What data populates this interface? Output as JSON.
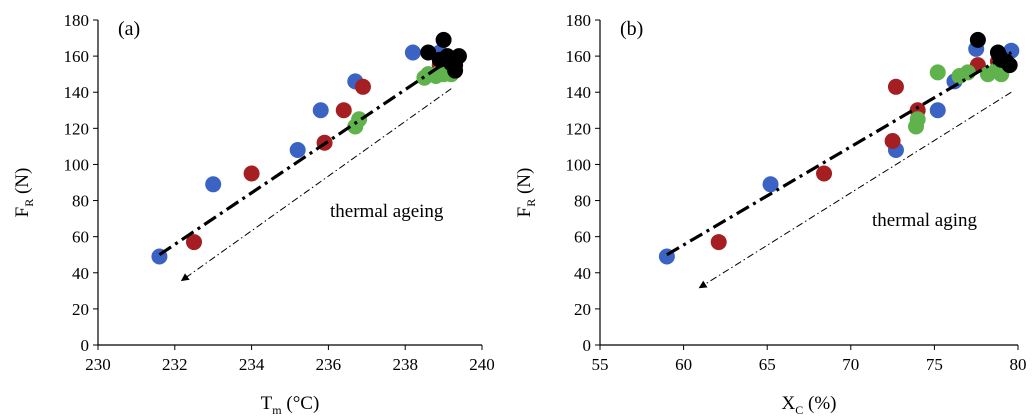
{
  "colors": {
    "blue": "#3a63c4",
    "red": "#a41e22",
    "green": "#5fb24c",
    "black": "#000000"
  },
  "chart_data": [
    {
      "type": "scatter",
      "panel_label": "(a)",
      "annotation": "thermal ageing",
      "xlabel": {
        "main": "T",
        "sub": "m",
        "unit": " (°C)"
      },
      "ylabel": {
        "main": "F",
        "sub": "R",
        "unit": " (N)"
      },
      "xlim": [
        230,
        240
      ],
      "ylim": [
        0,
        180
      ],
      "xticks": [
        230,
        232,
        234,
        236,
        238,
        240
      ],
      "yticks": [
        0,
        20,
        40,
        60,
        80,
        100,
        120,
        140,
        160,
        180
      ],
      "grid": false,
      "series": [
        {
          "color_key": "blue",
          "points": [
            [
              231.6,
              49
            ],
            [
              233.0,
              89
            ],
            [
              235.2,
              108
            ],
            [
              235.8,
              130
            ],
            [
              236.7,
              146
            ],
            [
              238.2,
              162
            ],
            [
              238.9,
              162
            ]
          ]
        },
        {
          "color_key": "red",
          "points": [
            [
              232.5,
              57
            ],
            [
              234.0,
              95
            ],
            [
              235.9,
              112
            ],
            [
              236.4,
              130
            ],
            [
              236.9,
              143
            ],
            [
              238.9,
              155
            ],
            [
              239.2,
              157
            ]
          ]
        },
        {
          "color_key": "green",
          "points": [
            [
              236.7,
              121
            ],
            [
              236.8,
              125
            ],
            [
              238.5,
              148
            ],
            [
              238.6,
              150
            ],
            [
              238.8,
              149
            ],
            [
              238.9,
              151
            ],
            [
              239.0,
              150
            ],
            [
              239.1,
              152
            ],
            [
              239.2,
              150
            ]
          ]
        },
        {
          "color_key": "black",
          "points": [
            [
              238.6,
              162
            ],
            [
              239.0,
              169
            ],
            [
              239.1,
              160
            ],
            [
              239.2,
              156
            ],
            [
              239.3,
              152
            ],
            [
              239.4,
              160
            ],
            [
              239.3,
              155
            ],
            [
              238.9,
              158
            ]
          ]
        }
      ],
      "trend_line": {
        "style": "dash-dot",
        "from": [
          231.6,
          50
        ],
        "to": [
          239.3,
          160
        ]
      },
      "arrow_line": {
        "style": "dash-dot-thin",
        "from": [
          239.2,
          142
        ],
        "to": [
          232.2,
          36
        ]
      }
    },
    {
      "type": "scatter",
      "panel_label": "(b)",
      "annotation": "thermal aging",
      "xlabel": {
        "main": "X",
        "sub": "C",
        "unit": " (%)"
      },
      "ylabel": {
        "main": "F",
        "sub": "R",
        "unit": " (N)"
      },
      "xlim": [
        55,
        80
      ],
      "ylim": [
        0,
        180
      ],
      "xticks": [
        55,
        60,
        65,
        70,
        75,
        80
      ],
      "yticks": [
        0,
        20,
        40,
        60,
        80,
        100,
        120,
        140,
        160,
        180
      ],
      "grid": false,
      "series": [
        {
          "color_key": "blue",
          "points": [
            [
              59.0,
              49
            ],
            [
              65.2,
              89
            ],
            [
              72.7,
              108
            ],
            [
              75.2,
              130
            ],
            [
              76.2,
              146
            ],
            [
              77.5,
              164
            ],
            [
              79.6,
              163
            ]
          ]
        },
        {
          "color_key": "red",
          "points": [
            [
              62.1,
              57
            ],
            [
              68.4,
              95
            ],
            [
              72.5,
              113
            ],
            [
              72.7,
              143
            ],
            [
              74.0,
              130
            ],
            [
              77.6,
              155
            ],
            [
              78.8,
              157
            ]
          ]
        },
        {
          "color_key": "green",
          "points": [
            [
              73.9,
              121
            ],
            [
              74.0,
              125
            ],
            [
              75.2,
              151
            ],
            [
              76.5,
              149
            ],
            [
              77.0,
              151
            ],
            [
              78.2,
              150
            ],
            [
              78.7,
              152
            ],
            [
              79.0,
              150
            ]
          ]
        },
        {
          "color_key": "black",
          "points": [
            [
              77.6,
              169
            ],
            [
              78.8,
              162
            ],
            [
              79.0,
              158
            ],
            [
              79.3,
              157
            ],
            [
              79.5,
              155
            ],
            [
              78.9,
              160
            ]
          ]
        }
      ],
      "trend_line": {
        "style": "dash-dot",
        "from": [
          59.0,
          50
        ],
        "to": [
          79.6,
          162
        ]
      },
      "arrow_line": {
        "style": "dash-dot-thin",
        "from": [
          79.6,
          140
        ],
        "to": [
          61.0,
          32
        ]
      }
    }
  ]
}
